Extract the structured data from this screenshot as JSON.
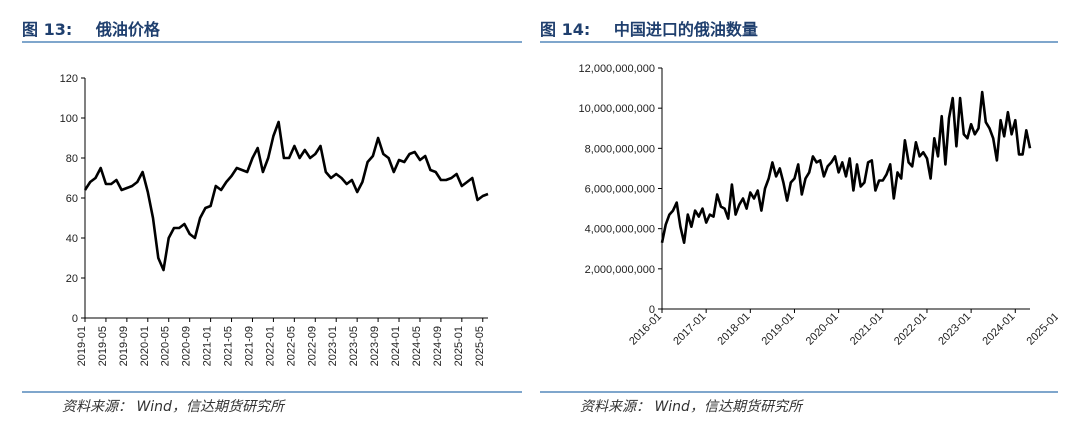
{
  "source_label": "资料来源：",
  "source_text": "Wind，信达期货研究所",
  "chart_data": [
    {
      "type": "line",
      "fig_label": "图 13:",
      "title": "俄油价格",
      "x_ticks": [
        "2019-01",
        "2019-05",
        "2019-09",
        "2020-01",
        "2020-05",
        "2020-09",
        "2021-01",
        "2021-05",
        "2021-09",
        "2022-01",
        "2022-05",
        "2022-09",
        "2023-01",
        "2023-05",
        "2023-09",
        "2024-01",
        "2024-05",
        "2024-09",
        "2025-01",
        "2025-05"
      ],
      "y_ticks": [
        "0",
        "20",
        "40",
        "60",
        "80",
        "100",
        "120"
      ],
      "ylim": [
        0,
        120
      ],
      "x": [
        "2019-01",
        "2019-02",
        "2019-03",
        "2019-04",
        "2019-05",
        "2019-06",
        "2019-07",
        "2019-08",
        "2019-09",
        "2019-10",
        "2019-11",
        "2019-12",
        "2020-01",
        "2020-02",
        "2020-03",
        "2020-04",
        "2020-05",
        "2020-06",
        "2020-07",
        "2020-08",
        "2020-09",
        "2020-10",
        "2020-11",
        "2020-12",
        "2021-01",
        "2021-02",
        "2021-03",
        "2021-04",
        "2021-05",
        "2021-06",
        "2021-07",
        "2021-08",
        "2021-09",
        "2021-10",
        "2021-11",
        "2021-12",
        "2022-01",
        "2022-02",
        "2022-03",
        "2022-04",
        "2022-05",
        "2022-06",
        "2022-07",
        "2022-08",
        "2022-09",
        "2022-10",
        "2022-11",
        "2022-12",
        "2023-01",
        "2023-02",
        "2023-03",
        "2023-04",
        "2023-05",
        "2023-06",
        "2023-07",
        "2023-08",
        "2023-09",
        "2023-10",
        "2023-11",
        "2023-12",
        "2024-01",
        "2024-02",
        "2024-03",
        "2024-04",
        "2024-05",
        "2024-06",
        "2024-07",
        "2024-08",
        "2024-09",
        "2024-10",
        "2024-11",
        "2024-12",
        "2025-01",
        "2025-02",
        "2025-03",
        "2025-04",
        "2025-05",
        "2025-06"
      ],
      "series": [
        {
          "values": [
            64,
            68,
            70,
            75,
            67,
            67,
            69,
            64,
            65,
            66,
            68,
            73,
            63,
            50,
            30,
            24,
            40,
            45,
            45,
            47,
            42,
            40,
            50,
            55,
            56,
            66,
            64,
            68,
            71,
            75,
            74,
            73,
            80,
            85,
            73,
            80,
            91,
            98,
            80,
            80,
            86,
            80,
            84,
            80,
            82,
            86,
            73,
            70,
            72,
            70,
            67,
            69,
            63,
            68,
            78,
            81,
            90,
            82,
            80,
            73,
            79,
            78,
            82,
            83,
            79,
            81,
            74,
            73,
            69,
            69,
            70,
            72,
            66,
            68,
            70,
            59,
            61,
            62
          ]
        }
      ]
    },
    {
      "type": "line",
      "fig_label": "图 14:",
      "title": "中国进口的俄油数量",
      "x_ticks": [
        "2016-01",
        "2017-01",
        "2018-01",
        "2019-01",
        "2020-01",
        "2021-01",
        "2022-01",
        "2023-01",
        "2024-01",
        "2025-01"
      ],
      "y_ticks": [
        "0",
        "2,000,000,000",
        "4,000,000,000",
        "6,000,000,000",
        "8,000,000,000",
        "10,000,000,000",
        "12,000,000,000"
      ],
      "ylim": [
        0,
        12000000000
      ],
      "x_start": "2016-01",
      "x_end": "2025-06",
      "series": [
        {
          "values": [
            3300000000,
            4200000000,
            4700000000,
            4900000000,
            5300000000,
            4100000000,
            3300000000,
            4700000000,
            4100000000,
            4900000000,
            4600000000,
            5000000000,
            4300000000,
            4700000000,
            4600000000,
            5700000000,
            5100000000,
            5000000000,
            4500000000,
            6200000000,
            4700000000,
            5200000000,
            5500000000,
            5000000000,
            5800000000,
            5500000000,
            5900000000,
            4900000000,
            6000000000,
            6500000000,
            7300000000,
            6600000000,
            7000000000,
            6300000000,
            5400000000,
            6300000000,
            6500000000,
            7200000000,
            5700000000,
            6500000000,
            6800000000,
            7600000000,
            7300000000,
            7400000000,
            6600000000,
            7100000000,
            7300000000,
            7600000000,
            6800000000,
            7300000000,
            6600000000,
            7500000000,
            5900000000,
            7200000000,
            6100000000,
            6300000000,
            7300000000,
            7400000000,
            5900000000,
            6400000000,
            6400000000,
            6700000000,
            7200000000,
            5500000000,
            6800000000,
            6500000000,
            8400000000,
            7300000000,
            7100000000,
            8300000000,
            7600000000,
            7800000000,
            7500000000,
            6500000000,
            8500000000,
            7600000000,
            9600000000,
            7200000000,
            9500000000,
            10500000000,
            8100000000,
            10500000000,
            8700000000,
            8500000000,
            9200000000,
            8700000000,
            9000000000,
            10800000000,
            9300000000,
            9000000000,
            8500000000,
            7400000000,
            9400000000,
            8600000000,
            9800000000,
            8700000000,
            9400000000,
            7700000000,
            7700000000,
            8900000000,
            8000000000
          ]
        }
      ]
    }
  ]
}
